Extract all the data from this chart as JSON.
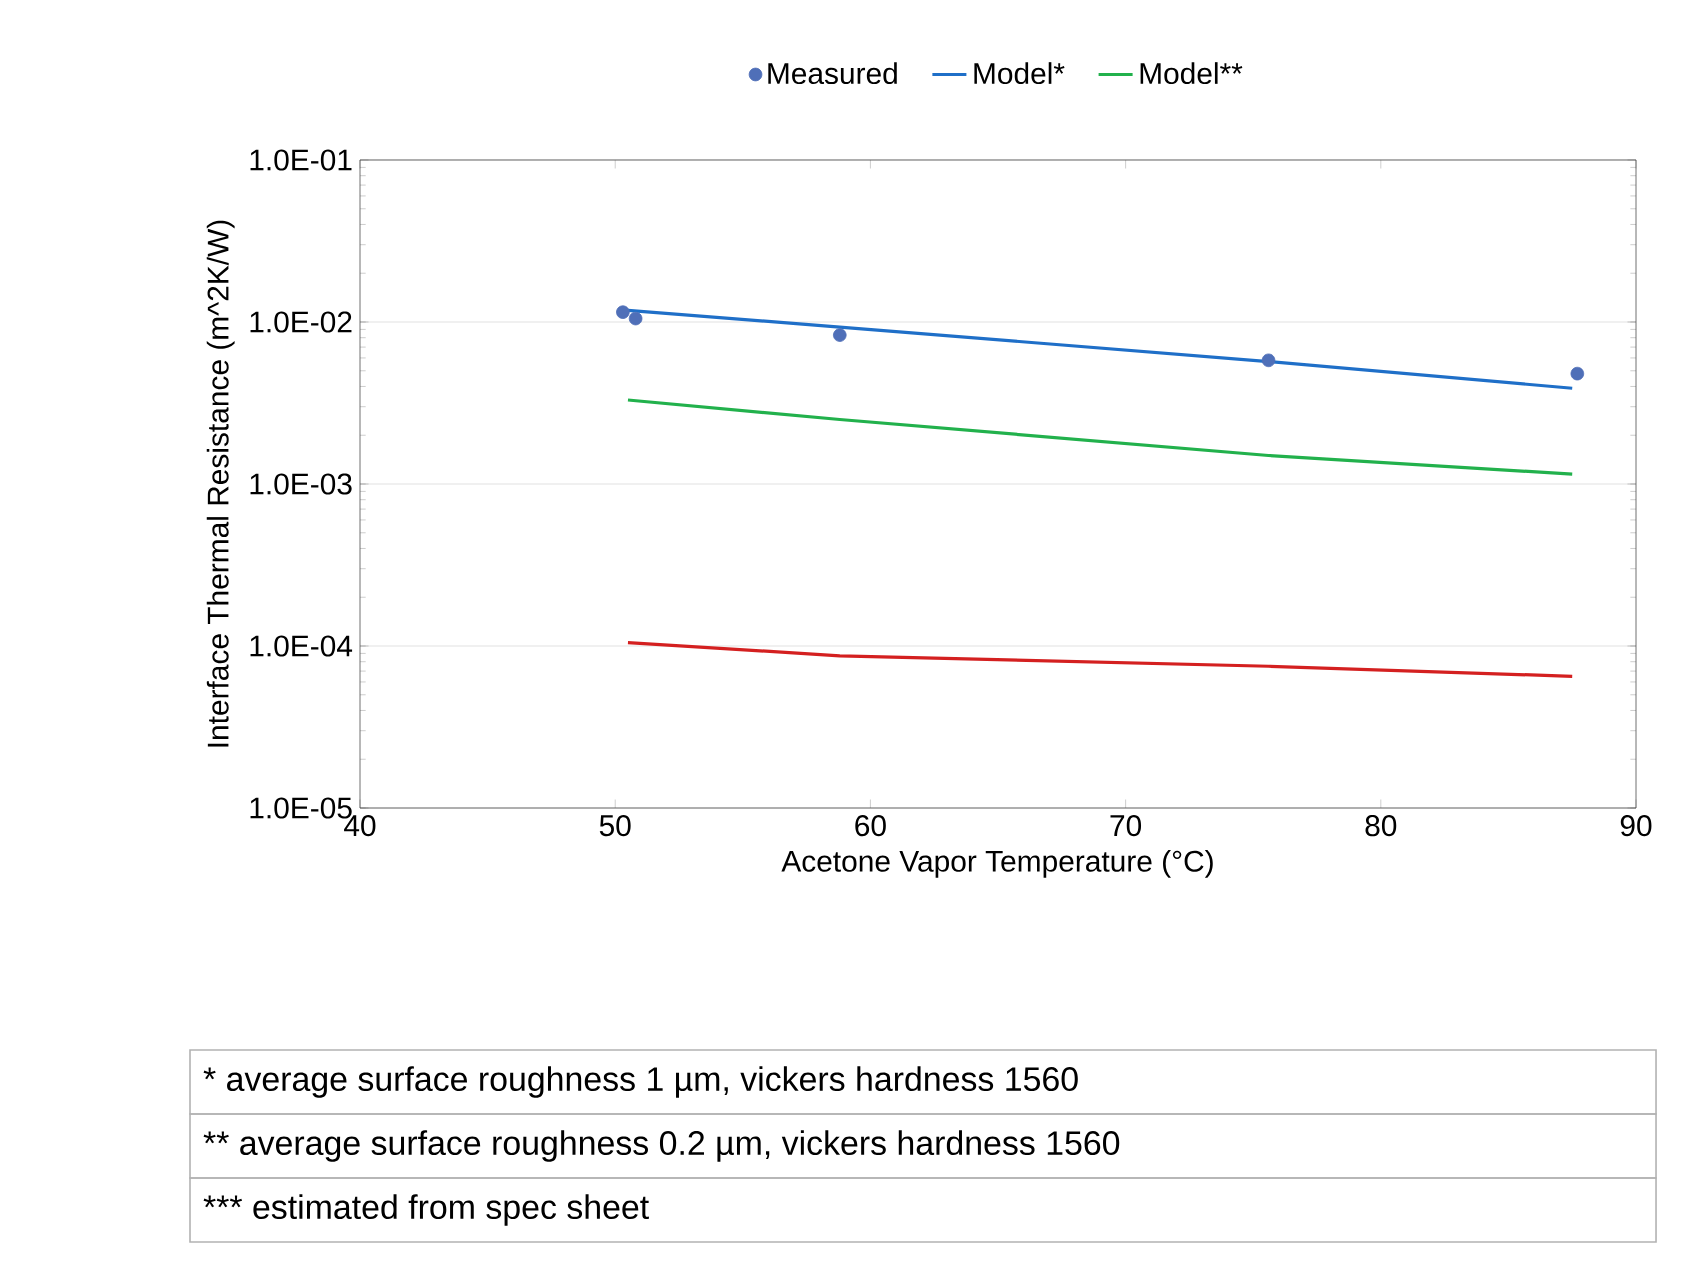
{
  "chart_data": {
    "type": "line",
    "xlabel": "Acetone Vapor Temperature (°C)",
    "ylabel": "Interface Thermal Resistance (m^2K/W)",
    "log": "y",
    "xlim": [
      40,
      90
    ],
    "xticks": [
      40,
      50,
      60,
      70,
      80,
      90
    ],
    "ylim": [
      1e-05,
      0.1
    ],
    "yticks": [
      {
        "value": 1e-05,
        "label": "1.0E-05"
      },
      {
        "value": 0.0001,
        "label": "1.0E-04"
      },
      {
        "value": 0.001,
        "label": "1.0E-03"
      },
      {
        "value": 0.01,
        "label": "1.0E-02"
      },
      {
        "value": 0.1,
        "label": "1.0E-01"
      }
    ],
    "grid": "y",
    "legend": "top",
    "series": [
      {
        "name": "Measured",
        "type": "scatter",
        "marker": "circle",
        "color": "#4f6fb8",
        "x": [
          50.3,
          50.8,
          58.8,
          75.6,
          87.7
        ],
        "values": [
          0.0115,
          0.0105,
          0.0083,
          0.0058,
          0.0048
        ]
      },
      {
        "name": "Model*",
        "type": "line",
        "marker": "none",
        "color": "#1f6fc8",
        "x": [
          50.5,
          58.8,
          75.6,
          87.5
        ],
        "values": [
          0.0118,
          0.0093,
          0.0057,
          0.0039
        ]
      },
      {
        "name": "Model**",
        "type": "line",
        "marker": "none",
        "color": "#22b14c",
        "x": [
          50.5,
          58.8,
          75.6,
          87.5
        ],
        "values": [
          0.0033,
          0.0025,
          0.0015,
          0.00115
        ]
      },
      {
        "type": "line",
        "marker": "none",
        "color": "#d42020",
        "x": [
          50.5,
          58.8,
          75.6,
          87.5
        ],
        "values": [
          0.000105,
          8.7e-05,
          7.5e-05,
          6.5e-05
        ]
      }
    ],
    "annotations": [
      "* average surface roughness 1 µm, vickers hardness 1560",
      "** average surface roughness 0.2 µm, vickers hardness 1560",
      "*** estimated from spec sheet"
    ]
  }
}
